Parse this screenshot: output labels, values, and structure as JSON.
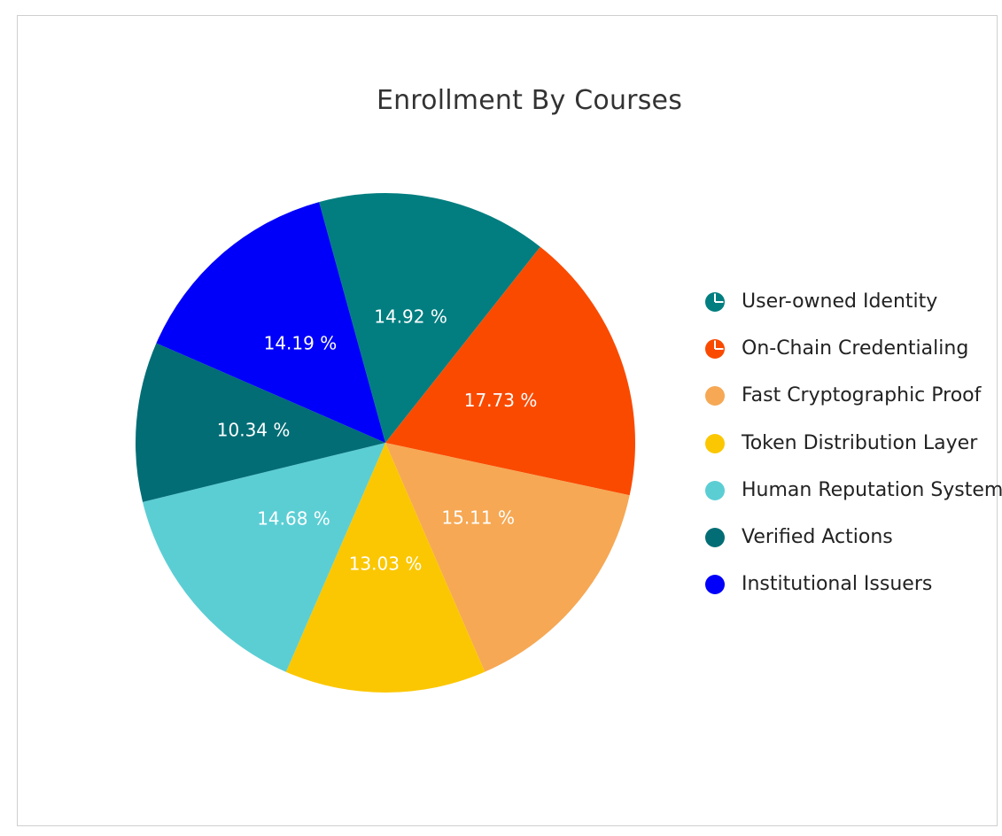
{
  "chart_data": {
    "type": "pie",
    "title": "Enrollment By Courses",
    "legend_position": "right",
    "slices": [
      {
        "name": "User-owned Identity",
        "value": 14.92,
        "label": "14.92 %",
        "color": "#027e80"
      },
      {
        "name": "On-Chain Credentialing",
        "value": 17.73,
        "label": "17.73 %",
        "color": "#fa4a00"
      },
      {
        "name": "Fast Cryptographic Proof",
        "value": 15.11,
        "label": "15.11 %",
        "color": "#f6a854"
      },
      {
        "name": "Token Distribution Layer",
        "value": 13.03,
        "label": "13.03 %",
        "color": "#fbc702"
      },
      {
        "name": "Human Reputation Systems",
        "value": 14.68,
        "label": "14.68 %",
        "color": "#5bced4"
      },
      {
        "name": "Verified Actions",
        "value": 10.34,
        "label": "10.34 %",
        "color": "#026d75"
      },
      {
        "name": "Institutional Issuers",
        "value": 14.19,
        "label": "14.19 %",
        "color": "#0000fa"
      }
    ],
    "legend_icons": [
      "pie-icon",
      "pie-icon",
      "circle-icon",
      "circle-icon",
      "circle-icon",
      "circle-icon",
      "circle-icon"
    ]
  }
}
